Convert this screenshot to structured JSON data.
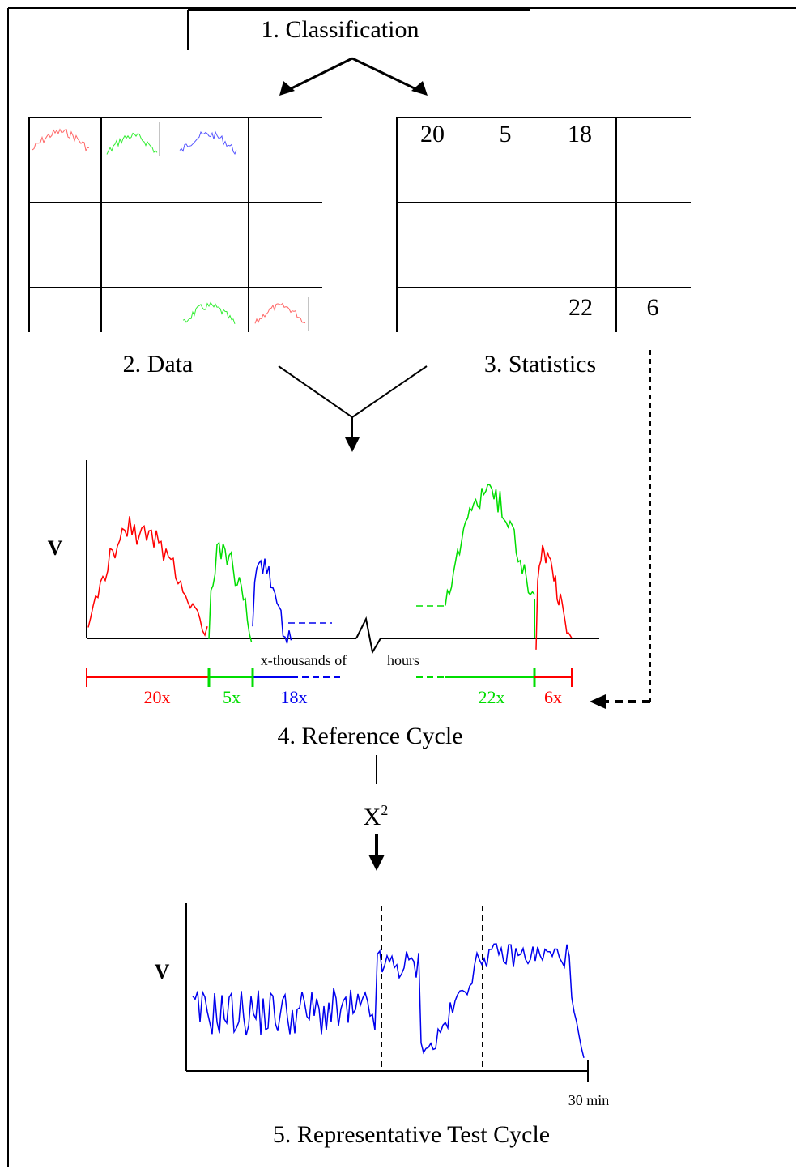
{
  "colors": {
    "red": "#ff0000",
    "green": "#00dd00",
    "blue": "#0000ee",
    "light_red": "#ff6666",
    "light_green": "#33ee33",
    "light_blue": "#5555ff",
    "black": "#000000"
  },
  "steps": {
    "classification": "1. Classification",
    "data": "2. Data",
    "statistics": "3. Statistics",
    "reference_cycle": "4. Reference Cycle",
    "chi_square": "X",
    "chi_square_exponent": "2",
    "test_cycle": "5. Representative Test Cycle"
  },
  "statistics_grid": {
    "top_row": [
      "20",
      "5",
      "18"
    ],
    "bottom_row": [
      "22",
      "6"
    ]
  },
  "reference_chart": {
    "y_label": "V",
    "x_label_left": "x-thousands of",
    "x_label_right": "hours",
    "segments": [
      "20x",
      "5x",
      "18x",
      "22x",
      "6x"
    ]
  },
  "test_chart": {
    "y_label": "V",
    "x_end_label": "30 min"
  }
}
